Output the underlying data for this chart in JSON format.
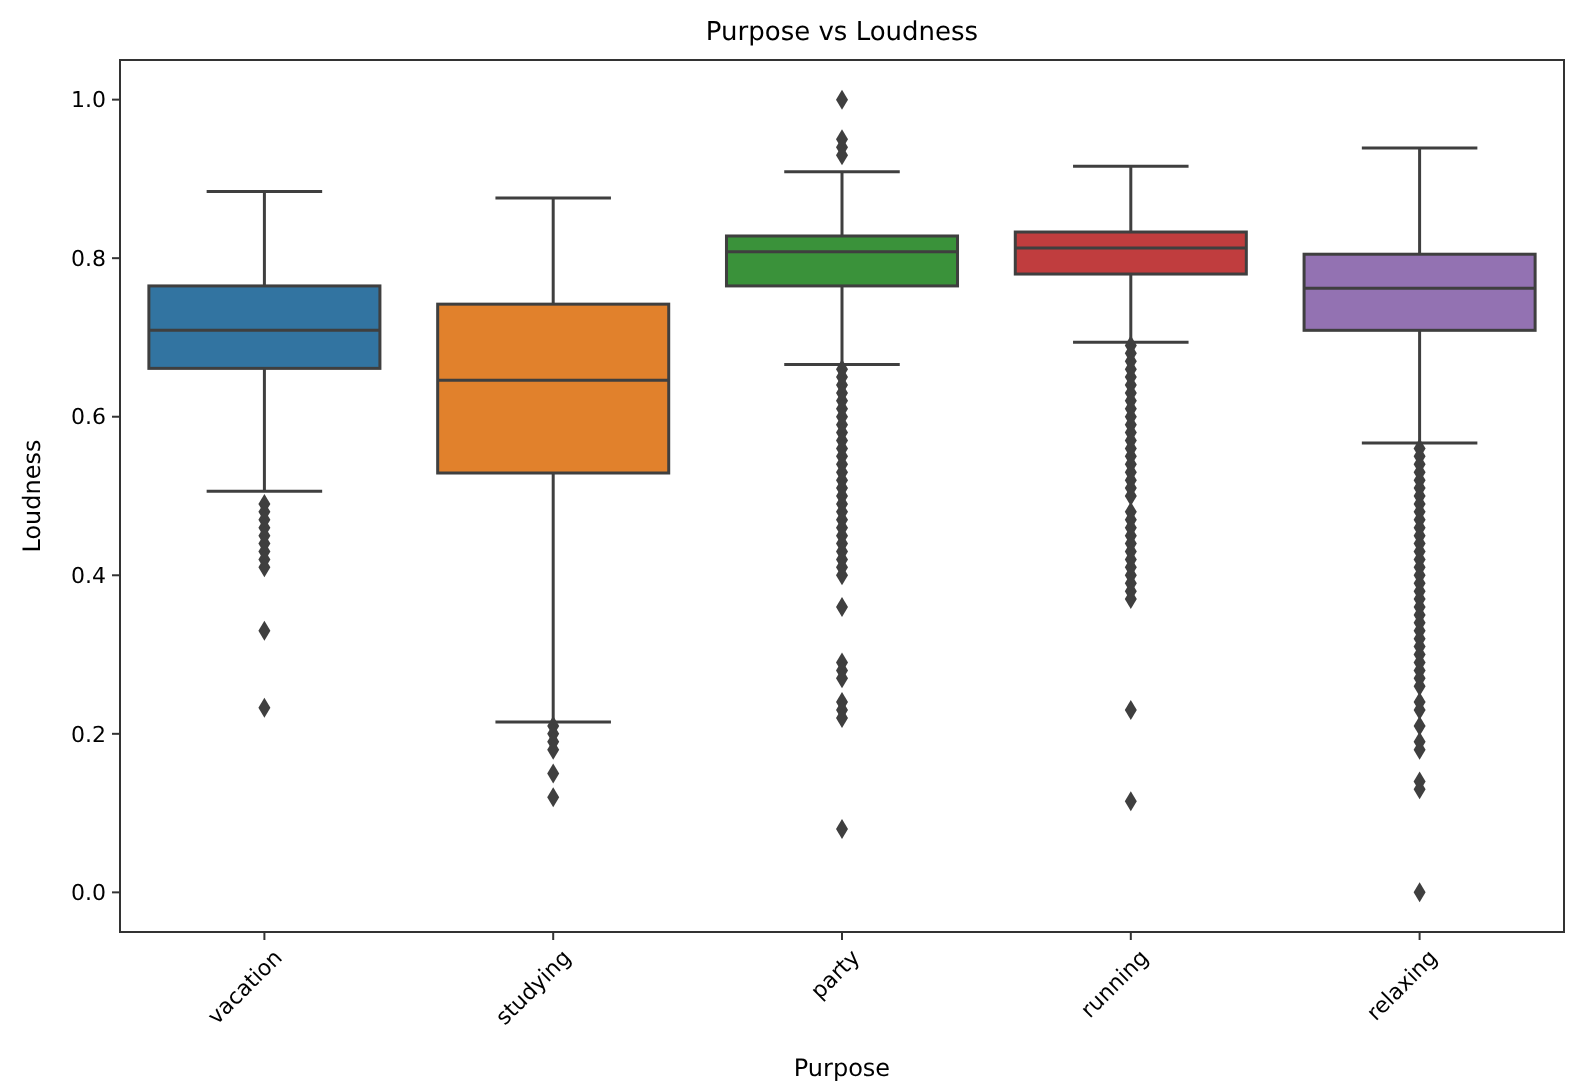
{
  "chart_data": {
    "type": "box",
    "title": "Purpose vs Loudness",
    "xlabel": "Purpose",
    "ylabel": "Loudness",
    "categories": [
      "vacation",
      "studying",
      "party",
      "running",
      "relaxing"
    ],
    "colors": [
      "#3274a1",
      "#e1812c",
      "#3a923a",
      "#c03d3e",
      "#9372b2"
    ],
    "ylim": [
      -0.05,
      1.05
    ],
    "yticks": [
      {
        "value": 0,
        "label": "0.0"
      },
      {
        "value": 0.2,
        "label": "0.2"
      },
      {
        "value": 0.4,
        "label": "0.4"
      },
      {
        "value": 0.6,
        "label": "0.6"
      },
      {
        "value": 0.8,
        "label": "0.8"
      },
      {
        "value": 1,
        "label": "1.0"
      }
    ],
    "marker": "diamond",
    "boxes": [
      {
        "low": 0.506,
        "q1": 0.661,
        "median": 0.709,
        "q3": 0.765,
        "high": 0.884,
        "outliers": [
          0.49,
          0.48,
          0.47,
          0.46,
          0.45,
          0.44,
          0.43,
          0.42,
          0.41,
          0.33,
          0.233
        ]
      },
      {
        "low": 0.215,
        "q1": 0.529,
        "median": 0.646,
        "q3": 0.742,
        "high": 0.876,
        "outliers": [
          0.21,
          0.2,
          0.19,
          0.18,
          0.15,
          0.12
        ]
      },
      {
        "low": 0.666,
        "q1": 0.765,
        "median": 0.808,
        "q3": 0.828,
        "high": 0.909,
        "outliers": [
          1.0,
          0.95,
          0.94,
          0.93,
          0.66,
          0.65,
          0.64,
          0.63,
          0.62,
          0.61,
          0.6,
          0.59,
          0.58,
          0.57,
          0.56,
          0.55,
          0.54,
          0.53,
          0.52,
          0.51,
          0.5,
          0.49,
          0.48,
          0.47,
          0.46,
          0.45,
          0.44,
          0.43,
          0.42,
          0.41,
          0.4,
          0.36,
          0.29,
          0.28,
          0.27,
          0.24,
          0.23,
          0.22,
          0.08
        ]
      },
      {
        "low": 0.694,
        "q1": 0.78,
        "median": 0.813,
        "q3": 0.833,
        "high": 0.916,
        "outliers": [
          0.69,
          0.68,
          0.67,
          0.66,
          0.65,
          0.64,
          0.63,
          0.62,
          0.61,
          0.6,
          0.59,
          0.58,
          0.57,
          0.56,
          0.55,
          0.54,
          0.53,
          0.52,
          0.51,
          0.5,
          0.48,
          0.47,
          0.46,
          0.45,
          0.44,
          0.43,
          0.42,
          0.41,
          0.4,
          0.39,
          0.38,
          0.37,
          0.23,
          0.115
        ]
      },
      {
        "low": 0.567,
        "q1": 0.709,
        "median": 0.762,
        "q3": 0.805,
        "high": 0.939,
        "outliers": [
          0.56,
          0.55,
          0.54,
          0.53,
          0.52,
          0.51,
          0.5,
          0.49,
          0.48,
          0.47,
          0.46,
          0.45,
          0.44,
          0.43,
          0.42,
          0.41,
          0.4,
          0.39,
          0.38,
          0.37,
          0.36,
          0.35,
          0.34,
          0.33,
          0.32,
          0.31,
          0.3,
          0.29,
          0.28,
          0.27,
          0.26,
          0.24,
          0.23,
          0.21,
          0.19,
          0.18,
          0.14,
          0.13,
          0.0
        ]
      }
    ]
  }
}
